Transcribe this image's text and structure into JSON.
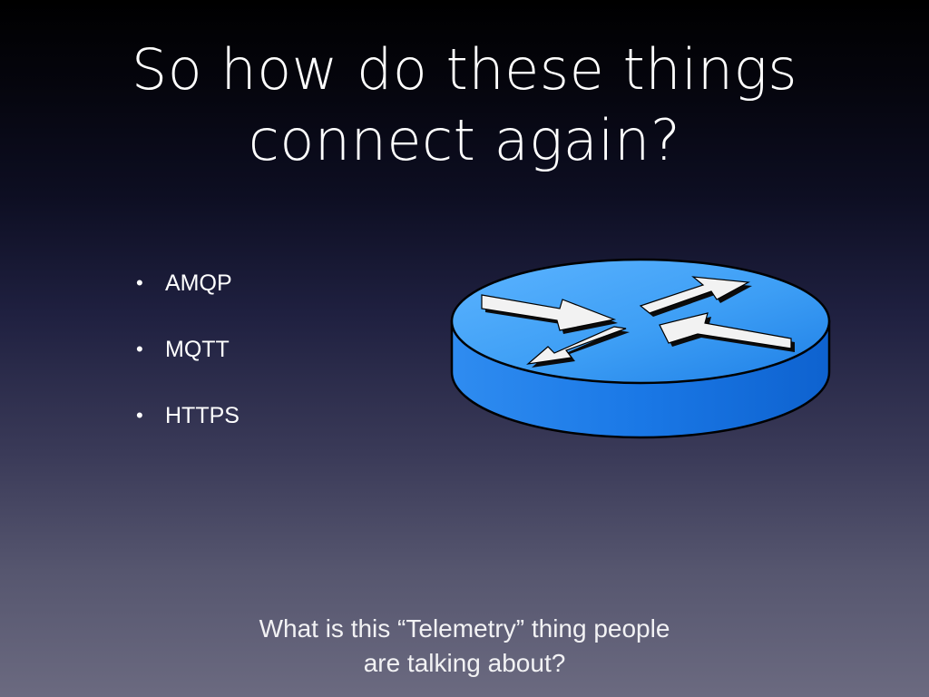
{
  "title": {
    "line1": "So how do these things",
    "line2": "connect again?"
  },
  "bullets": [
    {
      "marker": "•",
      "label": "AMQP"
    },
    {
      "marker": "•",
      "label": "MQTT"
    },
    {
      "marker": "•",
      "label": "HTTPS"
    }
  ],
  "graphic": {
    "icon": "router-icon",
    "colors": {
      "top": "#3d9ef5",
      "side": "#1573e0",
      "outline": "#000000",
      "arrow_fill": "#f2f2f2"
    }
  },
  "footer": {
    "line1": "What is this “Telemetry” thing people",
    "line2": "are talking about?"
  }
}
